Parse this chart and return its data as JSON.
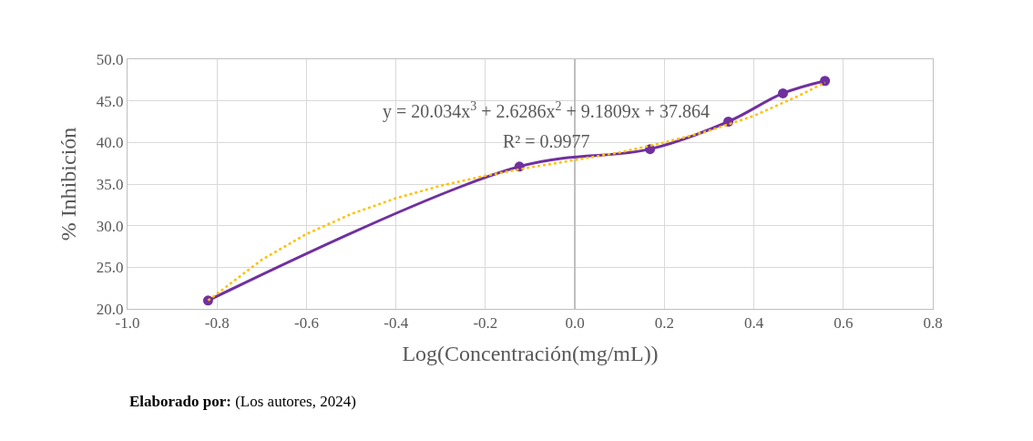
{
  "chart_data": {
    "type": "line",
    "xlabel": "Log(Concentración(mg/mL))",
    "ylabel": "% Inhibición",
    "series": [
      {
        "color": "#7030a0",
        "marker": "circle",
        "line_style": "solid",
        "x": [
          -0.82,
          -0.124,
          0.168,
          0.343,
          0.465,
          0.559
        ],
        "values": [
          21.0,
          37.1,
          39.2,
          42.5,
          45.9,
          47.4
        ]
      },
      {
        "color": "#ffc000",
        "marker": "none",
        "line_style": "dotted",
        "x": [
          -0.82,
          -0.7,
          -0.6,
          -0.5,
          -0.4,
          -0.3,
          -0.2,
          -0.1,
          0.0,
          0.1,
          0.2,
          0.3,
          0.4,
          0.5,
          0.559
        ],
        "values": [
          21.0,
          25.9,
          29.0,
          31.4,
          33.3,
          34.8,
          36.0,
          37.0,
          37.9,
          38.8,
          40.0,
          41.4,
          43.2,
          45.6,
          47.2
        ]
      }
    ],
    "annotations": [
      "y = 20.034x$^{3}$ + 2.6286x$^{2}$ + 9.1809x + 37.864",
      "R² = 0.9977",
      "Elaborado por:",
      "(Los autores, 2024)"
    ],
    "xlim": [
      -1.0,
      0.8
    ],
    "xticks": [
      {
        "value": -1.0,
        "label": "-1.0"
      },
      -0.8,
      -0.6,
      -0.4,
      -0.2,
      {
        "value": 0,
        "label": "0.0"
      },
      0.2,
      0.4,
      0.6,
      0.8
    ],
    "ylim": [
      20,
      50
    ],
    "yticks": [
      {
        "value": 20,
        "label": "20.0"
      },
      {
        "value": 25,
        "label": "25.0"
      },
      {
        "value": 30,
        "label": "30.0"
      },
      {
        "value": 35,
        "label": "35.0"
      },
      {
        "value": 40,
        "label": "40.0"
      },
      {
        "value": 45,
        "label": "45.0"
      },
      {
        "value": 50,
        "label": "50.0"
      }
    ],
    "grid": true
  }
}
